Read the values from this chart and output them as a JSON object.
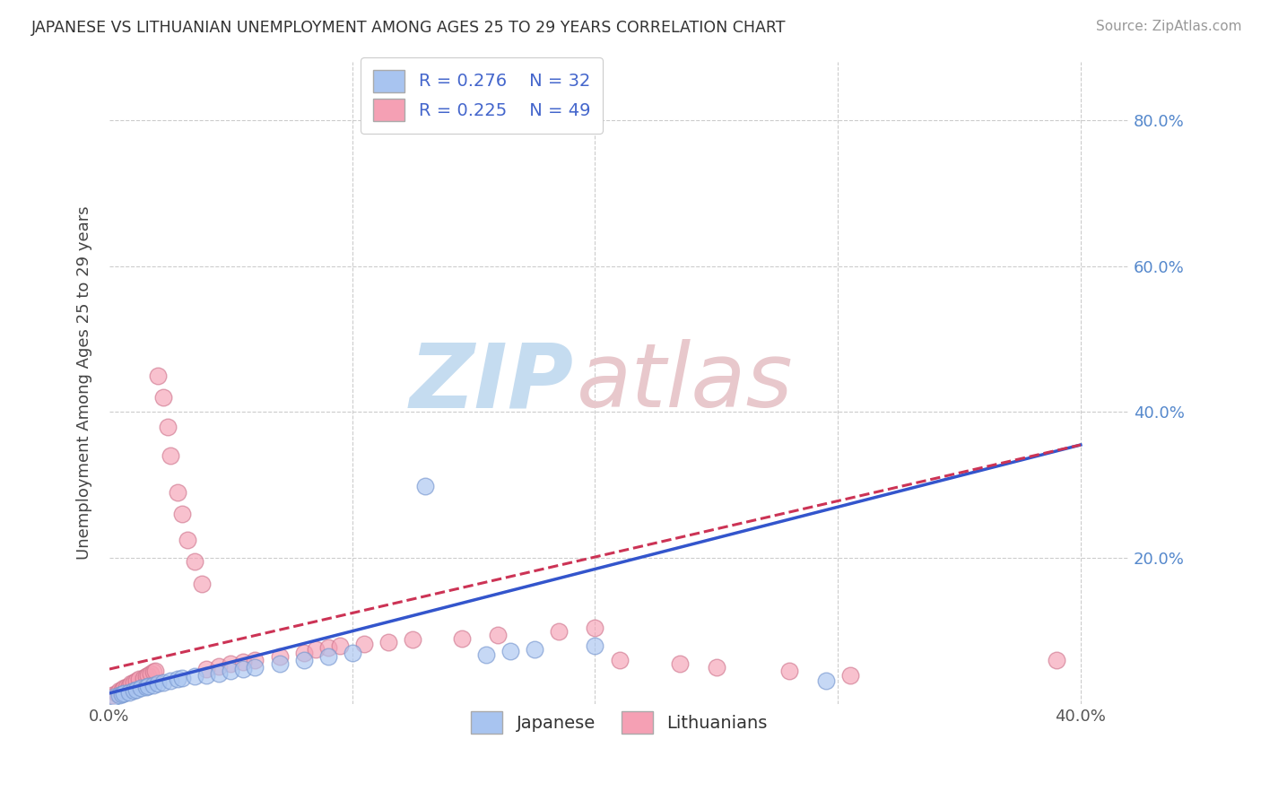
{
  "title": "JAPANESE VS LITHUANIAN UNEMPLOYMENT AMONG AGES 25 TO 29 YEARS CORRELATION CHART",
  "source": "Source: ZipAtlas.com",
  "ylabel": "Unemployment Among Ages 25 to 29 years",
  "xlim": [
    0.0,
    0.42
  ],
  "ylim": [
    0.0,
    0.88
  ],
  "x_ticks": [
    0.0,
    0.1,
    0.2,
    0.3,
    0.4
  ],
  "x_tick_labels": [
    "0.0%",
    "",
    "",
    "",
    "40.0%"
  ],
  "y_ticks": [
    0.0,
    0.2,
    0.4,
    0.6,
    0.8
  ],
  "y_tick_labels_right": [
    "",
    "20.0%",
    "40.0%",
    "60.0%",
    "80.0%"
  ],
  "legend_r1": "R = 0.276",
  "legend_n1": "N = 32",
  "legend_r2": "R = 0.225",
  "legend_n2": "N = 49",
  "japanese_face_color": "#a8c4f0",
  "lithuanian_face_color": "#f5a0b4",
  "japanese_edge_color": "#7898d0",
  "lithuanian_edge_color": "#d07890",
  "japanese_line_color": "#3355cc",
  "lithuanian_line_color": "#cc3355",
  "watermark_zip_color": "#c5dcf0",
  "watermark_atlas_color": "#e8c8cc",
  "jp_x": [
    0.002,
    0.004,
    0.005,
    0.006,
    0.008,
    0.01,
    0.011,
    0.013,
    0.015,
    0.016,
    0.018,
    0.02,
    0.022,
    0.025,
    0.028,
    0.03,
    0.035,
    0.04,
    0.045,
    0.05,
    0.055,
    0.06,
    0.07,
    0.08,
    0.09,
    0.1,
    0.13,
    0.155,
    0.165,
    0.175,
    0.2,
    0.295
  ],
  "jp_y": [
    0.01,
    0.012,
    0.014,
    0.015,
    0.016,
    0.018,
    0.02,
    0.022,
    0.024,
    0.025,
    0.026,
    0.028,
    0.03,
    0.032,
    0.034,
    0.036,
    0.038,
    0.04,
    0.042,
    0.045,
    0.048,
    0.05,
    0.055,
    0.06,
    0.065,
    0.07,
    0.298,
    0.068,
    0.072,
    0.075,
    0.08,
    0.032
  ],
  "lt_x": [
    0.001,
    0.003,
    0.004,
    0.005,
    0.006,
    0.007,
    0.008,
    0.009,
    0.01,
    0.011,
    0.012,
    0.014,
    0.015,
    0.016,
    0.017,
    0.018,
    0.019,
    0.02,
    0.022,
    0.024,
    0.025,
    0.028,
    0.03,
    0.032,
    0.035,
    0.038,
    0.04,
    0.045,
    0.05,
    0.055,
    0.06,
    0.07,
    0.08,
    0.085,
    0.09,
    0.095,
    0.105,
    0.115,
    0.125,
    0.145,
    0.16,
    0.185,
    0.2,
    0.21,
    0.235,
    0.25,
    0.28,
    0.305,
    0.39
  ],
  "lt_y": [
    0.012,
    0.015,
    0.018,
    0.02,
    0.022,
    0.024,
    0.025,
    0.028,
    0.03,
    0.032,
    0.034,
    0.036,
    0.038,
    0.04,
    0.042,
    0.044,
    0.046,
    0.45,
    0.42,
    0.38,
    0.34,
    0.29,
    0.26,
    0.225,
    0.195,
    0.165,
    0.048,
    0.052,
    0.055,
    0.058,
    0.06,
    0.065,
    0.07,
    0.075,
    0.078,
    0.08,
    0.082,
    0.085,
    0.088,
    0.09,
    0.095,
    0.1,
    0.105,
    0.06,
    0.055,
    0.05,
    0.045,
    0.04,
    0.06
  ],
  "background_color": "#ffffff"
}
